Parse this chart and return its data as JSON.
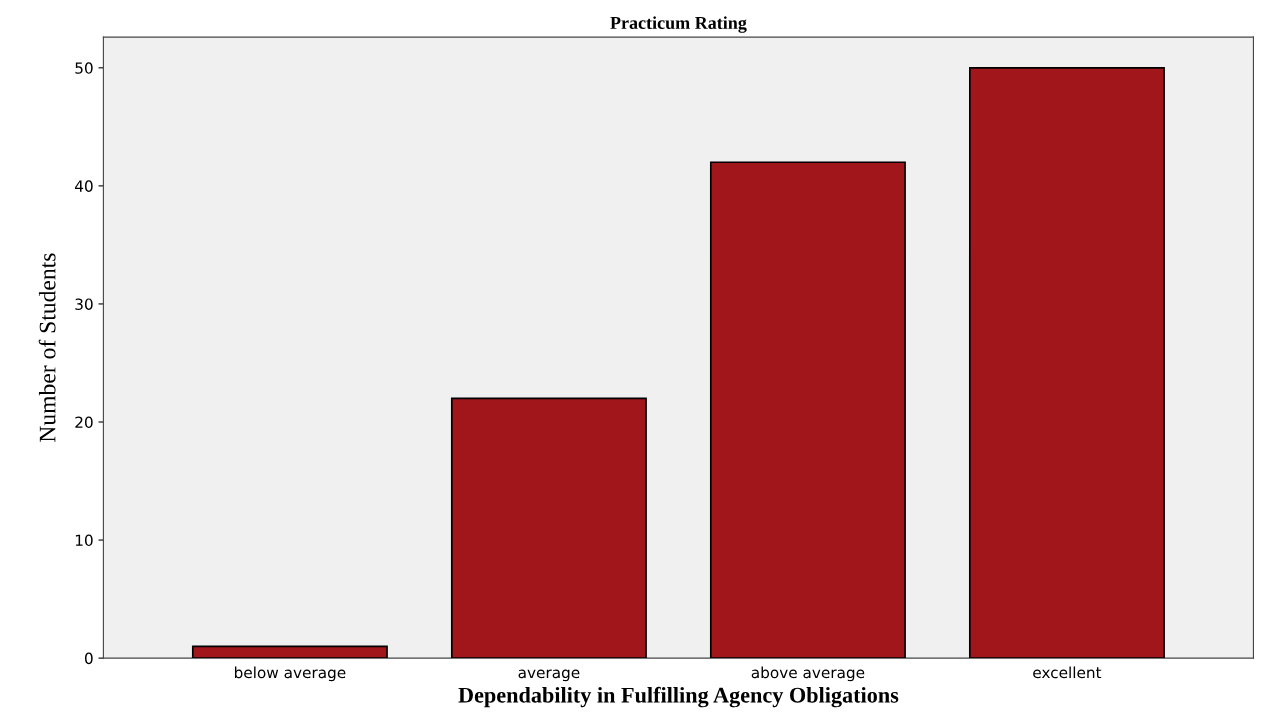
{
  "chart_data": {
    "type": "bar",
    "title": "Practicum Rating",
    "xlabel": "Dependability in Fulfilling Agency Obligations",
    "ylabel": "Number of Students",
    "categories": [
      "below average",
      "average",
      "above average",
      "excellent"
    ],
    "values": [
      1,
      22,
      42,
      50
    ],
    "color": "#a0161a",
    "ylim": [
      0,
      52.6
    ],
    "yticks": [
      0,
      10,
      20,
      30,
      40,
      50
    ],
    "grid": false
  }
}
